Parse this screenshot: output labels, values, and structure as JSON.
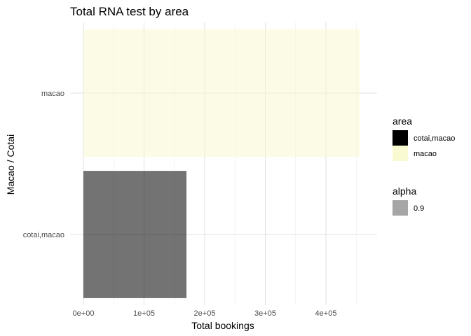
{
  "chart_data": {
    "type": "bar",
    "orientation": "horizontal",
    "title": "Total RNA test by area",
    "xlabel": "Total bookings",
    "ylabel": "Macao / Cotai",
    "categories": [
      "cotai,macao",
      "macao"
    ],
    "values": [
      170000,
      456000
    ],
    "xlim": [
      0,
      480000
    ],
    "x_ticks": [
      0,
      100000,
      200000,
      300000,
      400000
    ],
    "x_tick_labels": [
      "0e+00",
      "1e+05",
      "2e+05",
      "3e+05",
      "4e+05"
    ],
    "grid": true,
    "colors": {
      "cotai,macao": "#000000",
      "macao": "#fafad2"
    },
    "bar_alpha": 0.55,
    "legend": {
      "placement": "right",
      "groups": [
        {
          "title": "area",
          "items": [
            {
              "label": "cotai,macao",
              "color": "#000000"
            },
            {
              "label": "macao",
              "color": "#fafad2"
            }
          ]
        },
        {
          "title": "alpha",
          "items": [
            {
              "label": "0.9",
              "color": "#a6a6a6"
            }
          ]
        }
      ]
    }
  }
}
